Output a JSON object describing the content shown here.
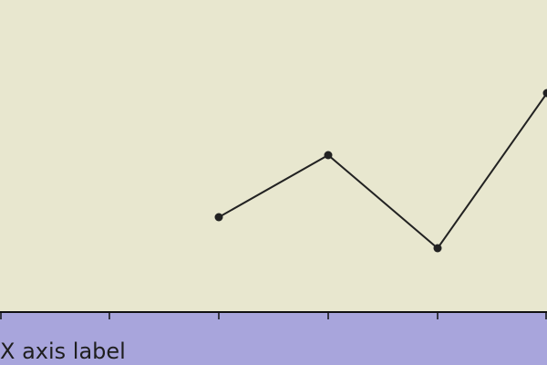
{
  "colors": {
    "plot_background": "#e8e7cf",
    "axis_band": "#a8a5dc",
    "line": "#222222",
    "axis_line": "#111111"
  },
  "chart_data": {
    "type": "line",
    "xlabel": "X axis label",
    "ylabel": "",
    "title": "",
    "xlim": [
      0,
      5
    ],
    "ylim": [
      0,
      5
    ],
    "x_ticks": [
      0,
      1,
      2,
      3,
      4,
      5
    ],
    "grid": false,
    "legend": "none",
    "series": [
      {
        "x": [
          2,
          3,
          4,
          5
        ],
        "y": [
          1.5,
          2.5,
          1.0,
          3.5
        ]
      }
    ]
  }
}
